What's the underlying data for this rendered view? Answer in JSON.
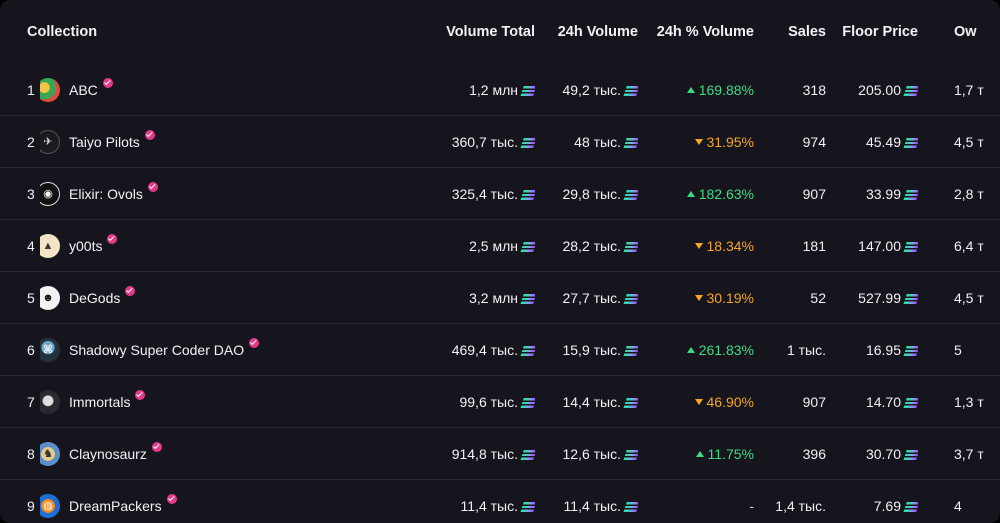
{
  "headers": {
    "collection": "Collection",
    "volume_total": "Volume Total",
    "volume_24h": "24h Volume",
    "pct_24h": "24h % Volume",
    "sales": "Sales",
    "floor": "Floor Price",
    "owners": "Ow"
  },
  "colors": {
    "background": "#16141c",
    "up": "#3ddc84",
    "down": "#f5a623",
    "verified": "#e23b8a"
  },
  "rows": [
    {
      "rank": "1",
      "name": "ABC",
      "icon": "abc-avatar-icon",
      "volume_total": "1,2 млн",
      "volume_24h": "49,2 тыс.",
      "change": "169.88%",
      "trend": "up",
      "sales": "318",
      "floor": "205.00",
      "owners": "1,7 т"
    },
    {
      "rank": "2",
      "name": "Taiyo Pilots",
      "icon": "taiyo-pilots-avatar-icon",
      "volume_total": "360,7 тыс.",
      "volume_24h": "48 тыс.",
      "change": "31.95%",
      "trend": "down",
      "sales": "974",
      "floor": "45.49",
      "owners": "4,5 т"
    },
    {
      "rank": "3",
      "name": "Elixir: Ovols",
      "icon": "elixir-ovols-avatar-icon",
      "volume_total": "325,4 тыс.",
      "volume_24h": "29,8 тыс.",
      "change": "182.63%",
      "trend": "up",
      "sales": "907",
      "floor": "33.99",
      "owners": "2,8 т"
    },
    {
      "rank": "4",
      "name": "y00ts",
      "icon": "y00ts-avatar-icon",
      "volume_total": "2,5 млн",
      "volume_24h": "28,2 тыс.",
      "change": "18.34%",
      "trend": "down",
      "sales": "181",
      "floor": "147.00",
      "owners": "6,4 т"
    },
    {
      "rank": "5",
      "name": "DeGods",
      "icon": "degods-avatar-icon",
      "volume_total": "3,2 млн",
      "volume_24h": "27,7 тыс.",
      "change": "30.19%",
      "trend": "down",
      "sales": "52",
      "floor": "527.99",
      "owners": "4,5 т"
    },
    {
      "rank": "6",
      "name": "Shadowy Super Coder DAO",
      "icon": "shadowy-super-coder-avatar-icon",
      "volume_total": "469,4 тыс.",
      "volume_24h": "15,9 тыс.",
      "change": "261.83%",
      "trend": "up",
      "sales": "1 тыс.",
      "floor": "16.95",
      "owners": "5"
    },
    {
      "rank": "7",
      "name": "Immortals",
      "icon": "immortals-avatar-icon",
      "volume_total": "99,6 тыс.",
      "volume_24h": "14,4 тыс.",
      "change": "46.90%",
      "trend": "down",
      "sales": "907",
      "floor": "14.70",
      "owners": "1,3 т"
    },
    {
      "rank": "8",
      "name": "Claynosaurz",
      "icon": "claynosaurz-avatar-icon",
      "volume_total": "914,8 тыс.",
      "volume_24h": "12,6 тыс.",
      "change": "11.75%",
      "trend": "up",
      "sales": "396",
      "floor": "30.70",
      "owners": "3,7 т"
    },
    {
      "rank": "9",
      "name": "DreamPackers",
      "icon": "dreampackers-avatar-icon",
      "volume_total": "11,4 тыс.",
      "volume_24h": "11,4 тыс.",
      "change": "-",
      "trend": "none",
      "sales": "1,4 тыс.",
      "floor": "7.69",
      "owners": "4"
    }
  ]
}
